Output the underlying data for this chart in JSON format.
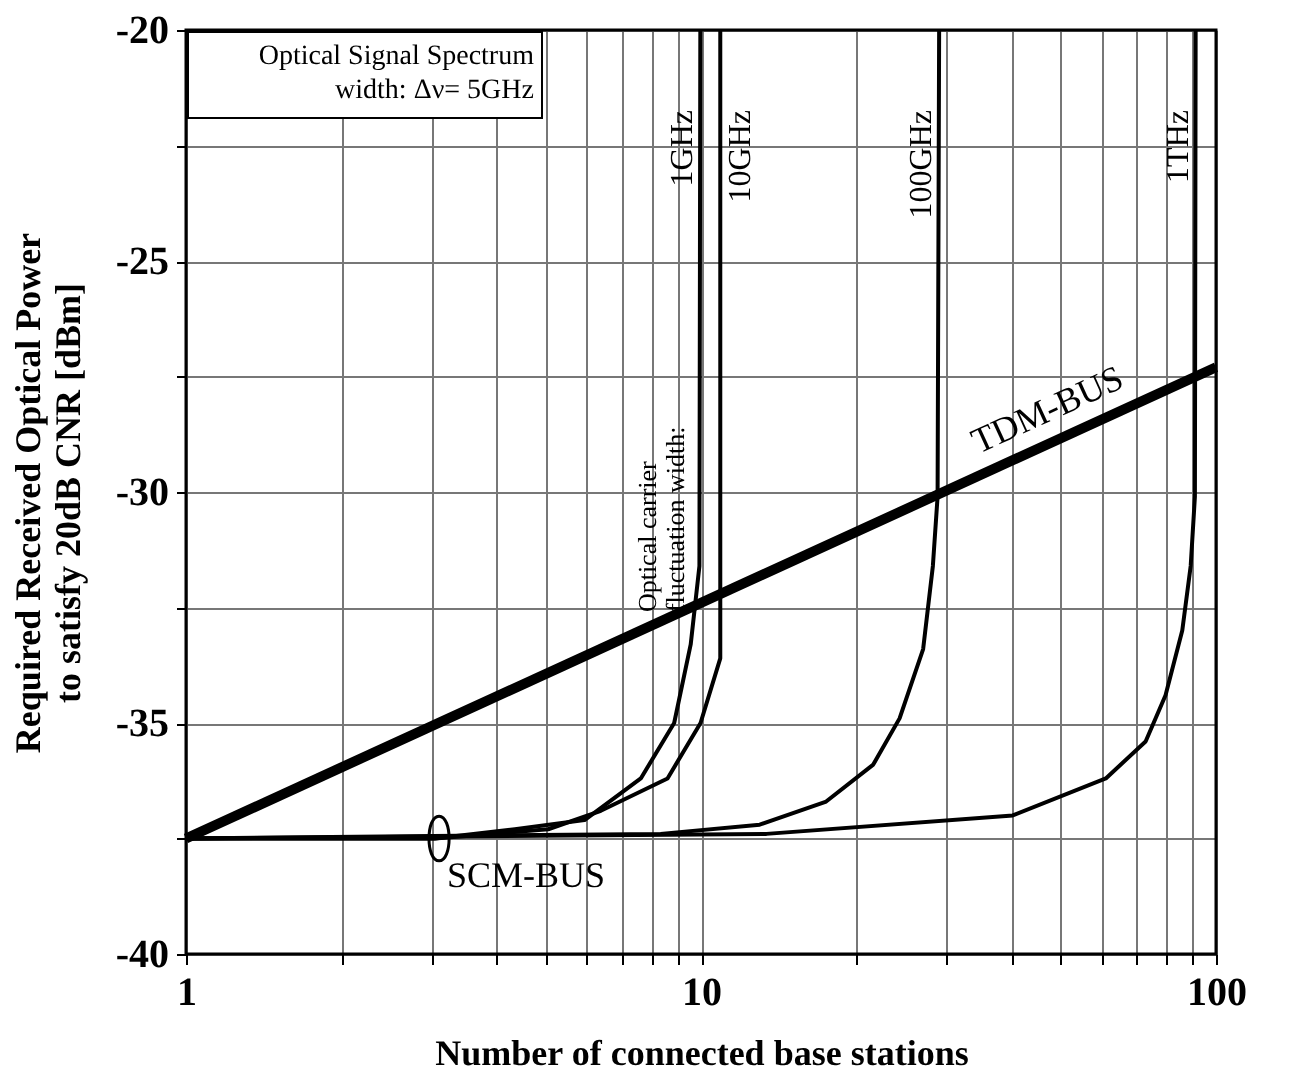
{
  "chart_data": {
    "type": "line",
    "xlabel": "Number of connected base stations",
    "ylabel": "Required Received Optical Power\nto satisfy 20dB CNR [dBm]",
    "log": "x",
    "grid": true,
    "legend": false,
    "marker": "none",
    "line_style": "solid",
    "xlim": [
      1,
      100
    ],
    "ylim": [
      -40,
      -20
    ],
    "xticks": [
      1,
      {
        "value": 2,
        "label": null
      },
      {
        "value": 3,
        "label": null
      },
      {
        "value": 4,
        "label": null
      },
      {
        "value": 5,
        "label": null
      },
      {
        "value": 6,
        "label": null
      },
      {
        "value": 7,
        "label": null
      },
      {
        "value": 8,
        "label": null
      },
      {
        "value": 9,
        "label": null
      },
      10,
      {
        "value": 20,
        "label": null
      },
      {
        "value": 30,
        "label": null
      },
      {
        "value": 40,
        "label": null
      },
      {
        "value": 50,
        "label": null
      },
      {
        "value": 60,
        "label": null
      },
      {
        "value": 70,
        "label": null
      },
      {
        "value": 80,
        "label": null
      },
      {
        "value": 90,
        "label": null
      },
      100
    ],
    "yticks": [
      -40,
      {
        "value": -37.5,
        "label": null
      },
      -35,
      {
        "value": -32.5,
        "label": null
      },
      -30,
      {
        "value": -27.5,
        "label": null
      },
      -25,
      {
        "value": -22.5,
        "label": null
      },
      -20
    ],
    "series": [
      {
        "name": "TDM-BUS",
        "color": "#000000",
        "x": [
          1,
          100
        ],
        "values": [
          -37.5,
          -27.3
        ]
      },
      {
        "name": "1GHz",
        "color": "#000000",
        "x": [
          1,
          3.04,
          4.35,
          5.94,
          7.64,
          8.87,
          9.55,
          9.93,
          9.97
        ],
        "values": [
          -37.5,
          -37.5,
          -37.3,
          -37.1,
          -36.2,
          -35.0,
          -33.3,
          -31.6,
          -20
        ]
      },
      {
        "name": "10GHz",
        "color": "#000000",
        "x": [
          1,
          3.04,
          5.05,
          6.39,
          8.61,
          9.98,
          10.9,
          10.9
        ],
        "values": [
          -37.5,
          -37.5,
          -37.3,
          -36.9,
          -36.2,
          -35.0,
          -33.6,
          -20
        ]
      },
      {
        "name": "100GHz",
        "color": "#000000",
        "x": [
          1,
          8.35,
          13.0,
          17.5,
          21.6,
          24.3,
          27.0,
          28.2,
          28.8,
          29.0
        ],
        "values": [
          -37.5,
          -37.4,
          -37.2,
          -36.7,
          -35.9,
          -34.9,
          -33.4,
          -31.6,
          -30.1,
          -20
        ]
      },
      {
        "name": "1THz",
        "color": "#000000",
        "x": [
          1,
          13.4,
          40.3,
          61.1,
          73.0,
          79.8,
          86.0,
          89.3,
          91.0,
          91.3
        ],
        "values": [
          -37.5,
          -37.4,
          -37.0,
          -36.2,
          -35.4,
          -34.4,
          -33.0,
          -31.6,
          -30.1,
          -20
        ]
      }
    ],
    "annotations": [
      "Optical Signal Spectrum\nwidth: Δν= 5GHz",
      "Optical carrier\nfluctuation width:",
      {
        "text": "SCM-BUS",
        "x": 3.1,
        "y": -37.5
      }
    ]
  }
}
